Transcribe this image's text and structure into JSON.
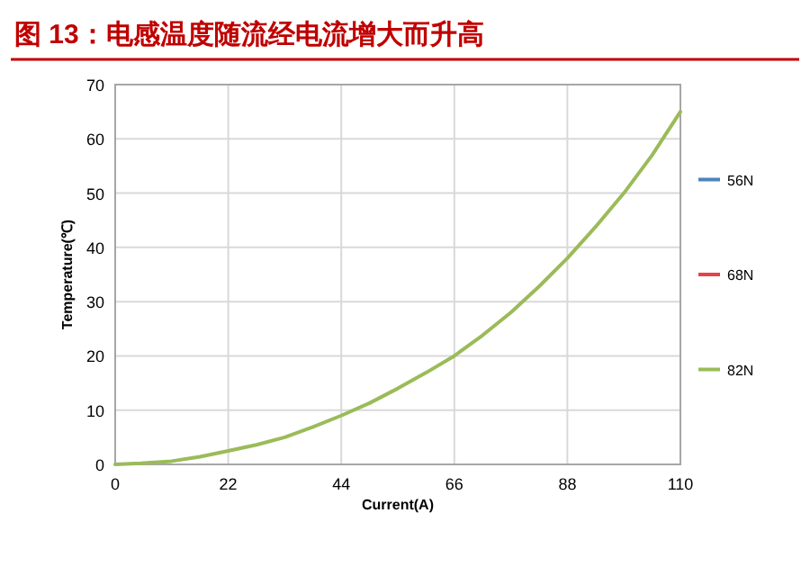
{
  "chart_data": {
    "type": "line",
    "title": "图 13：电感温度随流经电流增大而升高",
    "xlabel": "Current(A)",
    "ylabel": "Temperature(℃)",
    "x": [
      0,
      5,
      11,
      16.5,
      22,
      27.5,
      33,
      38.5,
      44,
      49.5,
      55,
      60.5,
      66,
      71.5,
      77,
      82.5,
      88,
      93.5,
      99,
      104.5,
      110
    ],
    "series": [
      {
        "name": "56N",
        "color": "#4f81bd",
        "values": [
          null,
          null,
          null,
          null,
          null,
          null,
          null,
          null,
          null,
          null,
          null,
          null,
          null,
          null,
          null,
          null,
          null,
          null,
          null,
          null,
          null
        ]
      },
      {
        "name": "68N",
        "color": "#e5424d",
        "values": [
          null,
          null,
          null,
          null,
          null,
          null,
          null,
          null,
          null,
          null,
          null,
          null,
          null,
          null,
          null,
          null,
          null,
          null,
          null,
          null,
          null
        ]
      },
      {
        "name": "82N",
        "color": "#9bbb59",
        "values": [
          0,
          0.2,
          0.6,
          1.4,
          2.5,
          3.6,
          5,
          6.9,
          9,
          11.3,
          14,
          16.9,
          20,
          23.8,
          28,
          32.8,
          38,
          43.8,
          50,
          57,
          65
        ]
      }
    ],
    "xlim": [
      0,
      110
    ],
    "xticks": [
      0,
      22,
      44,
      66,
      88,
      110
    ],
    "ylim": [
      0,
      70
    ],
    "yticks": [
      0,
      10,
      20,
      30,
      40,
      50,
      60,
      70
    ],
    "grid": true,
    "legend": "right",
    "marker": "none",
    "line_style": "solid"
  }
}
